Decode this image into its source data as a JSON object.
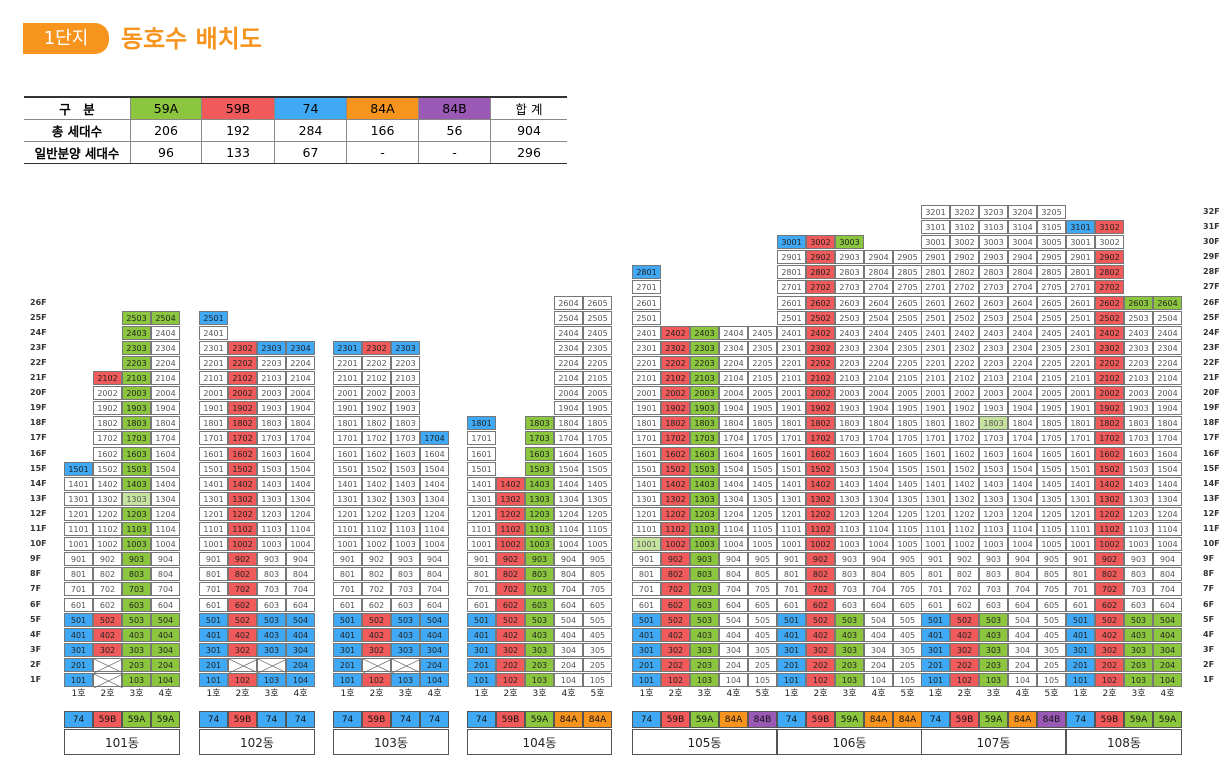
{
  "header": {
    "badge": "1단지",
    "title": "동호수 배치도"
  },
  "summary": {
    "columns": [
      "구　분",
      "59A",
      "59B",
      "74",
      "84A",
      "84B",
      "합 계"
    ],
    "column_colors": [
      "#ffffff",
      "#8cc63f",
      "#f05a5a",
      "#3fa9f5",
      "#f7941d",
      "#9b59b6",
      "#ffffff"
    ],
    "rows": [
      {
        "label": "총 세대수",
        "values": [
          "206",
          "192",
          "284",
          "166",
          "56",
          "904"
        ]
      },
      {
        "label": "일반분양 세대수",
        "values": [
          "96",
          "133",
          "67",
          "-",
          "-",
          "296"
        ]
      }
    ]
  },
  "colors": {
    "59A": "#8cc63f",
    "59B": "#f05a5a",
    "74": "#3fa9f5",
    "84A": "#f7941d",
    "84B": "#9b59b6",
    "light": "#c7e3a0",
    "none": "#ffffff"
  },
  "floor_labels_left": [
    "26F",
    "25F",
    "24F",
    "23F",
    "22F",
    "21F",
    "20F",
    "19F",
    "18F",
    "17F",
    "16F",
    "15F",
    "14F",
    "13F",
    "12F",
    "11F",
    "10F",
    "9F",
    "8F",
    "7F",
    "6F",
    "5F",
    "4F",
    "3F",
    "2F",
    "1F"
  ],
  "floor_labels_right": [
    "32F",
    "31F",
    "30F",
    "29F",
    "28F",
    "27F",
    "26F",
    "25F",
    "24F",
    "23F",
    "22F",
    "21F",
    "20F",
    "19F",
    "18F",
    "17F",
    "16F",
    "15F",
    "14F",
    "13F",
    "12F",
    "11F",
    "10F",
    "9F",
    "8F",
    "7F",
    "6F",
    "5F",
    "4F",
    "3F",
    "2F",
    "1F"
  ],
  "buildings": [
    {
      "name": "101동",
      "units": [
        "1호",
        "2호",
        "3호",
        "4호"
      ],
      "types": [
        "74",
        "59B",
        "59A",
        "59A"
      ],
      "tops": [
        15,
        21,
        25,
        25
      ],
      "xs": [],
      "highlights": {
        "1303": "light"
      },
      "marked": {
        "2102": "59B",
        "2503": "59A",
        "2504": "59A",
        "2403": "59A",
        "2303": "59A",
        "2203": "59A",
        "2103": "59A",
        "2003": "59A",
        "1903": "59A",
        "1803": "59A",
        "1703": "59A",
        "1603": "59A",
        "1503": "59A",
        "1501": "74",
        "1403": "59A",
        "1303": "59A",
        "1203": "59A",
        "1103": "59A",
        "1003": "59A",
        "903": "59A",
        "803": "59A",
        "703": "59A",
        "603": "59A"
      },
      "base_colors": [
        "74",
        "59B",
        "59A",
        "59A"
      ],
      "base_from": 5,
      "x2": [
        2
      ]
    },
    {
      "name": "102동",
      "units": [
        "1호",
        "2호",
        "3호",
        "4호"
      ],
      "types": [
        "74",
        "59B",
        "74",
        "74"
      ],
      "tops": [
        25,
        23,
        23,
        23
      ],
      "x2": [
        2,
        3
      ],
      "base_colors": [
        "74",
        "59B",
        "74",
        "74"
      ],
      "base_from": 5,
      "marked": {
        "2501": "74",
        "2302": "59B",
        "2303": "74",
        "2304": "74",
        "2202": "59B",
        "2102": "59B",
        "2002": "59B",
        "1902": "59B",
        "1802": "59B",
        "1702": "59B",
        "1602": "59B",
        "1502": "59B",
        "1402": "59B",
        "1302": "59B",
        "1202": "59B",
        "1102": "59B",
        "1002": "59B",
        "902": "59B",
        "802": "59B",
        "702": "59B",
        "602": "59B"
      },
      "highlights": {}
    },
    {
      "name": "103동",
      "units": [
        "1호",
        "2호",
        "3호",
        "4호"
      ],
      "types": [
        "74",
        "59B",
        "74",
        "74"
      ],
      "tops": [
        23,
        23,
        23,
        17
      ],
      "x2": [
        2,
        3
      ],
      "base_colors": [
        "74",
        "59B",
        "74",
        "74"
      ],
      "base_from": 5,
      "marked": {
        "2301": "74",
        "2302": "59B",
        "2303": "74",
        "1704": "74"
      },
      "highlights": {}
    },
    {
      "name": "104동",
      "units": [
        "1호",
        "2호",
        "3호",
        "4호",
        "5호"
      ],
      "types": [
        "74",
        "59B",
        "59A",
        "84A",
        "84A"
      ],
      "tops": [
        18,
        14,
        18,
        26,
        26
      ],
      "x2": [],
      "base_colors": [
        "74",
        "59B",
        "59A",
        "none",
        "none"
      ],
      "base_from": 5,
      "marked": {
        "1801": "74",
        "1803": "59A",
        "1703": "59A",
        "1603": "59A",
        "1503": "59A",
        "1402": "59B",
        "1403": "59A",
        "1302": "59B",
        "1303": "59A",
        "1202": "59B",
        "1203": "59A",
        "1102": "59B",
        "1103": "59A",
        "1002": "59B",
        "1003": "59A",
        "902": "59B",
        "903": "59A",
        "802": "59B",
        "803": "59A",
        "702": "59B",
        "703": "59A",
        "602": "59B",
        "603": "59A"
      },
      "highlights": {}
    },
    {
      "name": "105동",
      "units": [
        "1호",
        "2호",
        "3호",
        "4호",
        "5호"
      ],
      "types": [
        "74",
        "59B",
        "59A",
        "84A",
        "84B"
      ],
      "tops": [
        28,
        24,
        24,
        24,
        24
      ],
      "x2": [],
      "base_colors": [
        "74",
        "59B",
        "59A",
        "none",
        "none"
      ],
      "base_from": 5,
      "marked": {
        "2801": "74"
      },
      "markcol": {
        "2": "59B",
        "3": "59A"
      },
      "markfrom": 6,
      "markto": 24,
      "highlights": {
        "1001": "light"
      }
    },
    {
      "name": "106동",
      "units": [
        "1호",
        "2호",
        "3호",
        "4호",
        "5호"
      ],
      "types": [
        "74",
        "59B",
        "59A",
        "84A",
        "84A"
      ],
      "tops": [
        30,
        30,
        30,
        29,
        29
      ],
      "x2": [],
      "base_colors": [
        "74",
        "59B",
        "59A",
        "none",
        "none"
      ],
      "base_from": 5,
      "marked": {
        "3001": "74",
        "3002": "59B",
        "3003": "59A"
      },
      "markcol": {
        "2": "59B"
      },
      "markfrom": 6,
      "markto": 29,
      "highlights": {}
    },
    {
      "name": "107동",
      "units": [
        "1호",
        "2호",
        "3호",
        "4호",
        "5호"
      ],
      "types": [
        "74",
        "59B",
        "59A",
        "84A",
        "84B"
      ],
      "tops": [
        32,
        32,
        32,
        32,
        32
      ],
      "x2": [],
      "base_colors": [
        "74",
        "59B",
        "59A",
        "none",
        "none"
      ],
      "base_from": 5,
      "marked": {},
      "highlights": {
        "1803": "light"
      }
    },
    {
      "name": "108동",
      "units": [
        "1호",
        "2호",
        "3호",
        "4호"
      ],
      "types": [
        "74",
        "59B",
        "59A",
        "59A"
      ],
      "tops": [
        31,
        31,
        26,
        26
      ],
      "x2": [],
      "base_colors": [
        "74",
        "59B",
        "59A",
        "59A"
      ],
      "base_from": 5,
      "marked": {
        "3101": "74",
        "3102": "59B",
        "2603": "59A",
        "2604": "59A"
      },
      "markcol": {
        "2": "59B"
      },
      "markfrom": 6,
      "markto": 29,
      "highlights": {}
    }
  ]
}
